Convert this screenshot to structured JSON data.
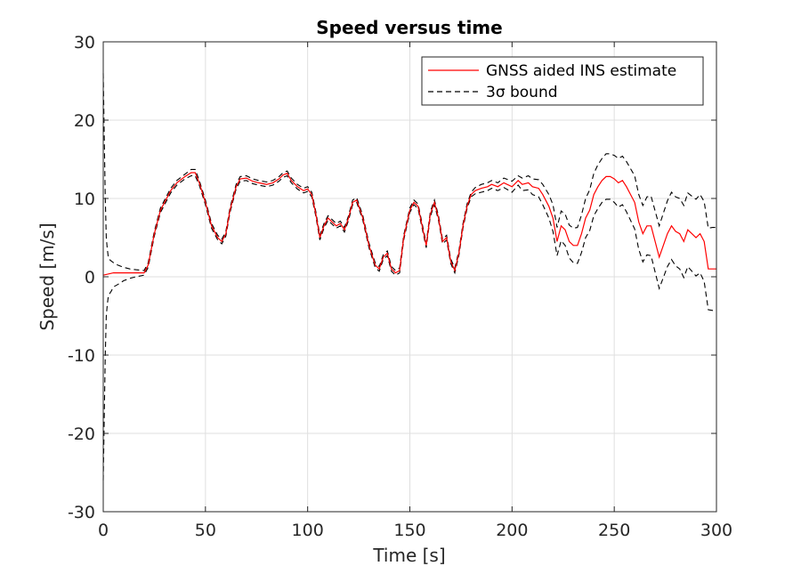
{
  "chart_data": {
    "type": "line",
    "title": "Speed versus time",
    "xlabel": "Time [s]",
    "ylabel": "Speed [m/s]",
    "xlim": [
      0,
      300
    ],
    "ylim": [
      -30,
      30
    ],
    "xticks": [
      0,
      50,
      100,
      150,
      200,
      250,
      300
    ],
    "yticks": [
      -30,
      -20,
      -10,
      0,
      10,
      20,
      30
    ],
    "grid": true,
    "legend_position": "top-right",
    "series": [
      {
        "name": "GNSS aided INS estimate",
        "color": "#ff0000",
        "style": "solid",
        "x": [
          0,
          5,
          10,
          15,
          20,
          22,
          25,
          28,
          30,
          33,
          36,
          40,
          43,
          45,
          47,
          50,
          53,
          56,
          58,
          60,
          62,
          65,
          67,
          70,
          73,
          76,
          80,
          83,
          86,
          88,
          90,
          92,
          95,
          98,
          100,
          102,
          104,
          106,
          108,
          110,
          112,
          114,
          116,
          118,
          120,
          122,
          124,
          127,
          130,
          133,
          135,
          137,
          139,
          141,
          143,
          145,
          147,
          150,
          152,
          154,
          156,
          158,
          160,
          162,
          164,
          166,
          168,
          170,
          172,
          174,
          176,
          178,
          180,
          182,
          185,
          188,
          190,
          193,
          196,
          200,
          203,
          205,
          208,
          210,
          213,
          215,
          218,
          220,
          222,
          224,
          226,
          228,
          230,
          232,
          234,
          236,
          238,
          240,
          242,
          244,
          246,
          248,
          250,
          252,
          254,
          256,
          258,
          260,
          262,
          264,
          266,
          268,
          270,
          272,
          274,
          276,
          278,
          280,
          282,
          284,
          286,
          288,
          290,
          292,
          294,
          296,
          298,
          300
        ],
        "y": [
          0.2,
          0.5,
          0.5,
          0.5,
          0.5,
          1.5,
          5.5,
          8.5,
          9.5,
          11.0,
          12.0,
          12.8,
          13.3,
          13.3,
          12.0,
          9.5,
          6.5,
          5.0,
          4.5,
          5.5,
          8.5,
          11.5,
          12.5,
          12.6,
          12.2,
          12.0,
          11.8,
          12.0,
          12.5,
          13.0,
          13.2,
          12.3,
          11.5,
          11.0,
          11.2,
          10.5,
          8.0,
          5.0,
          6.5,
          7.5,
          7.0,
          6.5,
          6.8,
          6.0,
          7.5,
          9.5,
          9.8,
          7.5,
          4.0,
          1.5,
          1.0,
          2.5,
          3.0,
          1.0,
          0.5,
          0.8,
          5.0,
          8.5,
          9.5,
          9.0,
          6.5,
          4.0,
          8.0,
          9.5,
          7.5,
          4.5,
          5.0,
          2.0,
          0.8,
          3.0,
          6.5,
          9.0,
          10.5,
          11.0,
          11.3,
          11.5,
          11.8,
          11.5,
          12.0,
          11.5,
          12.3,
          11.8,
          12.0,
          11.5,
          11.3,
          10.5,
          9.0,
          7.5,
          4.5,
          6.5,
          6.0,
          4.5,
          4.0,
          4.0,
          5.5,
          7.5,
          8.5,
          10.5,
          11.5,
          12.3,
          12.8,
          12.8,
          12.5,
          12.0,
          12.3,
          11.5,
          10.5,
          9.5,
          7.0,
          5.5,
          6.5,
          6.5,
          4.5,
          2.5,
          4.0,
          5.5,
          6.5,
          5.8,
          5.5,
          4.5,
          6.0,
          5.5,
          5.0,
          5.5,
          4.5,
          1.0,
          1.0,
          1.0
        ]
      },
      {
        "name": "3σ bound",
        "color": "#000000",
        "style": "dashed",
        "x": [
          0,
          0.5,
          1,
          1.5,
          2,
          2.5,
          3,
          4,
          5,
          7,
          10,
          13,
          16,
          20,
          22,
          25,
          28,
          30,
          33,
          36,
          40,
          43,
          45,
          47,
          50,
          53,
          56,
          58,
          60,
          62,
          65,
          67,
          70,
          73,
          76,
          80,
          83,
          86,
          88,
          90,
          92,
          95,
          98,
          100,
          102,
          104,
          106,
          108,
          110,
          112,
          114,
          116,
          118,
          120,
          122,
          124,
          127,
          130,
          133,
          135,
          137,
          139,
          141,
          143,
          145,
          147,
          150,
          152,
          154,
          156,
          158,
          160,
          162,
          164,
          166,
          168,
          170,
          172,
          174,
          176,
          178,
          180,
          182,
          185,
          188,
          190,
          193,
          196,
          200,
          203,
          205,
          208,
          210,
          213,
          215,
          218,
          220,
          222,
          224,
          226,
          228,
          230,
          232,
          234,
          236,
          238,
          240,
          242,
          244,
          246,
          248,
          250,
          252,
          254,
          256,
          258,
          260,
          262,
          264,
          266,
          268,
          270,
          272,
          274,
          276,
          278,
          280,
          282,
          284,
          286,
          288,
          290,
          292,
          294,
          296,
          298,
          300
        ],
        "y": [
          26,
          18,
          10,
          5,
          3.5,
          2.5,
          2.2,
          2.0,
          1.8,
          1.5,
          1.2,
          1.0,
          0.9,
          0.8,
          1.8,
          5.8,
          8.8,
          9.8,
          11.3,
          12.3,
          13.1,
          13.7,
          13.7,
          12.3,
          9.8,
          6.8,
          5.3,
          4.8,
          5.8,
          8.8,
          11.8,
          12.8,
          12.9,
          12.5,
          12.3,
          12.1,
          12.3,
          12.8,
          13.3,
          13.5,
          12.6,
          11.8,
          11.3,
          11.5,
          10.8,
          8.3,
          5.3,
          6.8,
          7.8,
          7.3,
          6.8,
          7.1,
          6.3,
          7.8,
          9.8,
          10.1,
          7.8,
          4.3,
          1.8,
          1.3,
          2.8,
          3.3,
          1.3,
          0.8,
          1.1,
          5.3,
          8.8,
          9.8,
          9.3,
          6.8,
          4.3,
          8.3,
          9.8,
          7.8,
          4.8,
          5.3,
          2.3,
          1.1,
          3.3,
          6.8,
          9.3,
          10.8,
          11.4,
          11.8,
          12.0,
          12.3,
          12.0,
          12.6,
          12.2,
          12.9,
          12.6,
          12.9,
          12.5,
          12.4,
          11.8,
          10.5,
          9.2,
          6.3,
          8.4,
          8.0,
          6.6,
          6.2,
          6.3,
          7.9,
          10.0,
          11.1,
          13.2,
          14.3,
          15.1,
          15.7,
          15.7,
          15.5,
          15.1,
          15.4,
          14.7,
          13.8,
          12.9,
          10.5,
          9.1,
          10.2,
          10.3,
          8.4,
          6.5,
          8.1,
          9.7,
          10.8,
          10.2,
          10.0,
          9.1,
          10.7,
          10.3,
          9.9,
          10.5,
          9.6,
          6.2,
          6.3,
          6.3
        ],
        "y_lower": [
          -26,
          -18,
          -10,
          -5,
          -3.5,
          -2.5,
          -2.2,
          -1.8,
          -1.3,
          -1.0,
          -0.5,
          -0.2,
          0.0,
          0.2,
          1.2,
          5.2,
          8.2,
          9.2,
          10.7,
          11.7,
          12.5,
          12.9,
          12.9,
          11.7,
          9.2,
          6.2,
          4.7,
          4.2,
          5.2,
          8.2,
          11.2,
          12.2,
          12.3,
          11.9,
          11.7,
          11.5,
          11.7,
          12.2,
          12.7,
          12.9,
          12.0,
          11.2,
          10.7,
          10.9,
          10.2,
          7.7,
          4.7,
          6.2,
          7.2,
          6.7,
          6.2,
          6.5,
          5.7,
          7.2,
          9.2,
          9.5,
          7.2,
          3.7,
          1.2,
          0.7,
          2.2,
          2.7,
          0.7,
          0.2,
          0.5,
          4.7,
          8.2,
          9.2,
          8.7,
          6.2,
          3.7,
          7.7,
          9.2,
          7.2,
          4.2,
          4.7,
          1.7,
          0.5,
          2.7,
          6.2,
          8.7,
          10.2,
          10.6,
          10.8,
          11.0,
          11.3,
          11.0,
          11.4,
          10.8,
          11.7,
          11.0,
          11.1,
          10.5,
          10.2,
          9.2,
          7.5,
          5.8,
          2.7,
          4.6,
          4.0,
          2.4,
          1.8,
          1.7,
          3.1,
          5.0,
          5.9,
          7.8,
          8.7,
          9.5,
          9.9,
          9.9,
          9.5,
          8.9,
          9.2,
          8.3,
          7.2,
          6.1,
          3.5,
          1.9,
          2.8,
          2.7,
          0.6,
          -1.5,
          -0.1,
          1.3,
          2.2,
          1.4,
          1.0,
          -0.1,
          1.3,
          0.7,
          0.1,
          0.5,
          -0.6,
          -4.2,
          -4.3,
          -4.3
        ]
      }
    ]
  }
}
